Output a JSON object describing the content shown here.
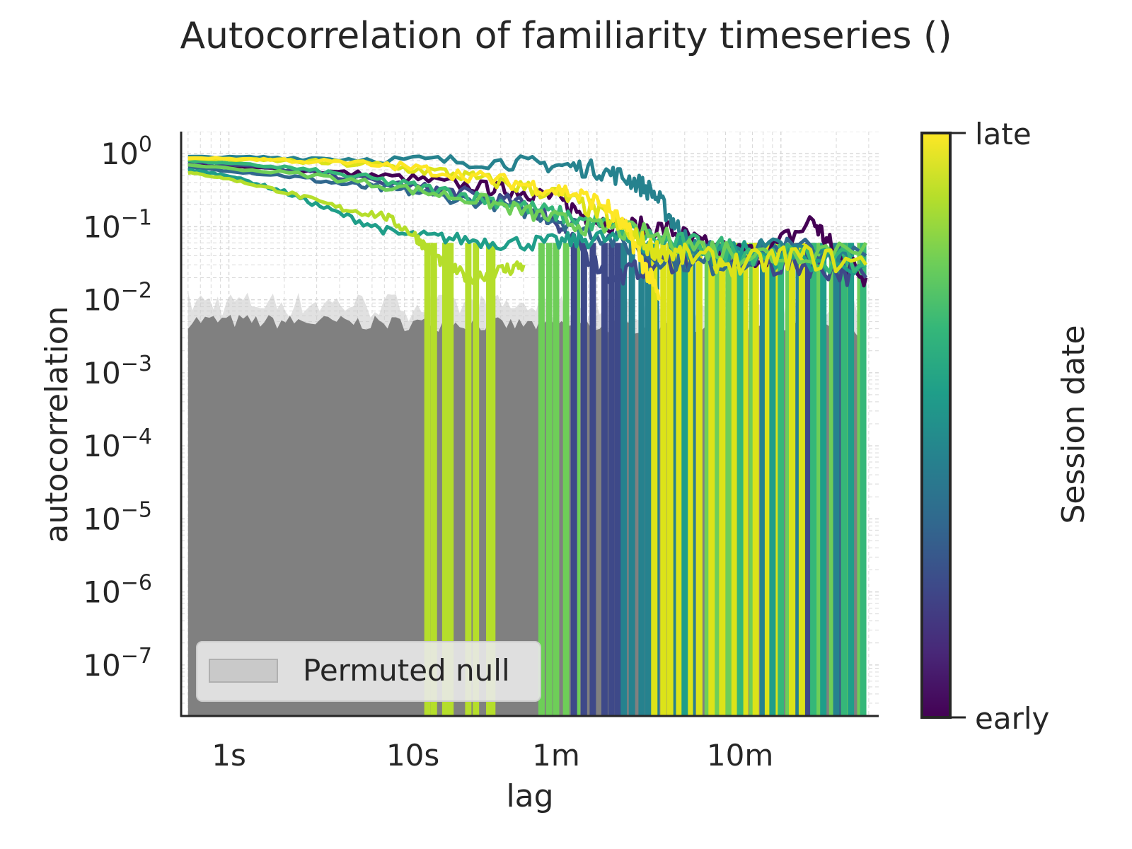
{
  "chart_data": {
    "type": "line",
    "title": "Autocorrelation of familiarity timeseries ()",
    "xlabel": "lag",
    "ylabel": "autocorrelation",
    "x_scale": "log",
    "y_scale": "log",
    "x_unit": "seconds",
    "xlim": [
      0.55,
      3400
    ],
    "ylim": [
      2e-08,
      2
    ],
    "x_ticks": [
      {
        "value": 1,
        "label": "1s"
      },
      {
        "value": 10,
        "label": "10s"
      },
      {
        "value": 60,
        "label": "1m"
      },
      {
        "value": 600,
        "label": "10m"
      }
    ],
    "y_ticks": [
      {
        "value": 1,
        "base": "10",
        "exp": "0"
      },
      {
        "value": 0.1,
        "base": "10",
        "exp": "−1"
      },
      {
        "value": 0.01,
        "base": "10",
        "exp": "−2"
      },
      {
        "value": 0.001,
        "base": "10",
        "exp": "−3"
      },
      {
        "value": 0.0001,
        "base": "10",
        "exp": "−4"
      },
      {
        "value": 1e-05,
        "base": "10",
        "exp": "−5"
      },
      {
        "value": 1e-06,
        "base": "10",
        "exp": "−6"
      },
      {
        "value": 1e-07,
        "base": "10",
        "exp": "−7"
      }
    ],
    "grid": true,
    "null_band": {
      "label": "Permuted null",
      "color": "#808080",
      "x_range": [
        0.6,
        2900
      ],
      "upper": 0.005
    },
    "legend": {
      "placement": "lower-left",
      "entries": [
        "Permuted null"
      ]
    },
    "colorbar": {
      "label": "Session date",
      "low_label": "early",
      "high_label": "late",
      "colormap": "viridis",
      "colors": [
        "#440154",
        "#482878",
        "#3e4989",
        "#31688e",
        "#26828e",
        "#1f9e89",
        "#35b779",
        "#6ece58",
        "#b5de2b",
        "#fde725"
      ]
    },
    "series": [
      {
        "color": "#440154",
        "points": [
          [
            0.6,
            0.7
          ],
          [
            1,
            0.66
          ],
          [
            3,
            0.58
          ],
          [
            10,
            0.45
          ],
          [
            25,
            0.34
          ],
          [
            40,
            0.3
          ],
          [
            60,
            0.25
          ],
          [
            90,
            0.13
          ],
          [
            150,
            0.1
          ],
          [
            250,
            0.09
          ],
          [
            400,
            0.05
          ],
          [
            800,
            0.04
          ],
          [
            1500,
            0.12
          ],
          [
            2000,
            0.04
          ],
          [
            2900,
            0.02
          ]
        ]
      },
      {
        "color": "#3e4989",
        "points": [
          [
            0.6,
            0.78
          ],
          [
            1,
            0.72
          ],
          [
            3,
            0.55
          ],
          [
            10,
            0.35
          ],
          [
            20,
            0.28
          ],
          [
            40,
            0.2
          ],
          [
            60,
            0.12
          ],
          [
            80,
            0.05
          ],
          [
            120,
            0.02
          ],
          [
            200,
            0.03
          ],
          [
            400,
            0.04
          ],
          [
            800,
            0.03
          ],
          [
            1500,
            0.03
          ],
          [
            2900,
            0.02
          ]
        ]
      },
      {
        "color": "#31688e",
        "points": [
          [
            0.6,
            0.65
          ],
          [
            2,
            0.5
          ],
          [
            5,
            0.36
          ],
          [
            10,
            0.3
          ],
          [
            30,
            0.2
          ],
          [
            60,
            0.13
          ],
          [
            100,
            0.08
          ],
          [
            200,
            0.04
          ],
          [
            400,
            0.03
          ],
          [
            1000,
            0.05
          ],
          [
            2900,
            0.04
          ]
        ]
      },
      {
        "color": "#26828e",
        "points": [
          [
            0.6,
            0.9
          ],
          [
            2,
            0.88
          ],
          [
            10,
            0.82
          ],
          [
            30,
            0.76
          ],
          [
            60,
            0.7
          ],
          [
            100,
            0.6
          ],
          [
            150,
            0.45
          ],
          [
            200,
            0.3
          ],
          [
            260,
            0.12
          ],
          [
            320,
            0.05
          ],
          [
            500,
            0.04
          ],
          [
            1000,
            0.05
          ],
          [
            2900,
            0.03
          ]
        ]
      },
      {
        "color": "#1f9e89",
        "points": [
          [
            0.6,
            0.6
          ],
          [
            1,
            0.5
          ],
          [
            2,
            0.3
          ],
          [
            4,
            0.15
          ],
          [
            8,
            0.08
          ],
          [
            15,
            0.07
          ],
          [
            30,
            0.06
          ],
          [
            60,
            0.06
          ],
          [
            100,
            0.07
          ],
          [
            200,
            0.06
          ],
          [
            400,
            0.05
          ],
          [
            1000,
            0.04
          ],
          [
            2900,
            0.03
          ]
        ]
      },
      {
        "color": "#35b779",
        "points": [
          [
            0.6,
            0.8
          ],
          [
            2,
            0.65
          ],
          [
            6,
            0.45
          ],
          [
            15,
            0.3
          ],
          [
            30,
            0.22
          ],
          [
            60,
            0.15
          ],
          [
            120,
            0.1
          ],
          [
            250,
            0.06
          ],
          [
            500,
            0.05
          ],
          [
            1000,
            0.04
          ],
          [
            2900,
            0.03
          ]
        ]
      },
      {
        "color": "#6ece58",
        "points": [
          [
            0.6,
            0.7
          ],
          [
            3,
            0.5
          ],
          [
            10,
            0.32
          ],
          [
            25,
            0.22
          ],
          [
            50,
            0.14
          ],
          [
            90,
            0.1
          ],
          [
            180,
            0.08
          ],
          [
            400,
            0.05
          ],
          [
            900,
            0.04
          ],
          [
            2900,
            0.06
          ]
        ]
      },
      {
        "color": "#b5de2b",
        "points": [
          [
            0.6,
            0.55
          ],
          [
            1,
            0.45
          ],
          [
            2,
            0.3
          ],
          [
            4,
            0.18
          ],
          [
            7,
            0.14
          ],
          [
            10,
            0.08
          ],
          [
            12,
            0.05
          ],
          [
            15,
            0.03
          ],
          [
            20,
            0.02
          ],
          [
            30,
            0.025
          ],
          [
            40,
            0.03
          ]
        ]
      },
      {
        "color": "#dce319",
        "points": [
          [
            0.6,
            0.85
          ],
          [
            2,
            0.8
          ],
          [
            6,
            0.7
          ],
          [
            15,
            0.55
          ],
          [
            30,
            0.4
          ],
          [
            60,
            0.28
          ],
          [
            100,
            0.16
          ],
          [
            150,
            0.08
          ],
          [
            200,
            0.05
          ],
          [
            300,
            0.04
          ],
          [
            600,
            0.03
          ],
          [
            1200,
            0.04
          ],
          [
            2900,
            0.03
          ]
        ]
      },
      {
        "color": "#fde725",
        "points": [
          [
            0.6,
            0.88
          ],
          [
            2,
            0.82
          ],
          [
            8,
            0.68
          ],
          [
            20,
            0.5
          ],
          [
            40,
            0.38
          ],
          [
            70,
            0.3
          ],
          [
            110,
            0.2
          ],
          [
            150,
            0.08
          ],
          [
            180,
            0.03
          ],
          [
            220,
            0.01
          ]
        ]
      }
    ],
    "dropouts": [
      {
        "color": "#b5de2b",
        "x": [
          12,
          13,
          15,
          16,
          20,
          22,
          26,
          27
        ],
        "to": 2e-08
      },
      {
        "color": "#6ece58",
        "x": [
          50,
          55,
          60,
          68,
          78,
          400,
          450,
          520,
          700,
          800,
          1100,
          1300,
          1600,
          1900,
          2300,
          2700
        ],
        "to": 2e-08
      },
      {
        "color": "#3e4989",
        "x": [
          75,
          85,
          95,
          110,
          120,
          130,
          1400,
          2100
        ],
        "to": 2e-08
      },
      {
        "color": "#26828e",
        "x": [
          140,
          155,
          175,
          190,
          210,
          260,
          330,
          800,
          1250,
          2000
        ],
        "to": 2e-08
      },
      {
        "color": "#dce319",
        "x": [
          205,
          230,
          250,
          280,
          320,
          360,
          420,
          480,
          560,
          640,
          730,
          850,
          950,
          1150,
          1300
        ],
        "to": 2e-08
      },
      {
        "color": "#1f9e89",
        "x": [
          300,
          900,
          1700,
          2400
        ],
        "to": 2e-08
      },
      {
        "color": "#35b779",
        "x": [
          600,
          1000,
          1500,
          2200,
          2800
        ],
        "to": 2e-08
      }
    ]
  }
}
